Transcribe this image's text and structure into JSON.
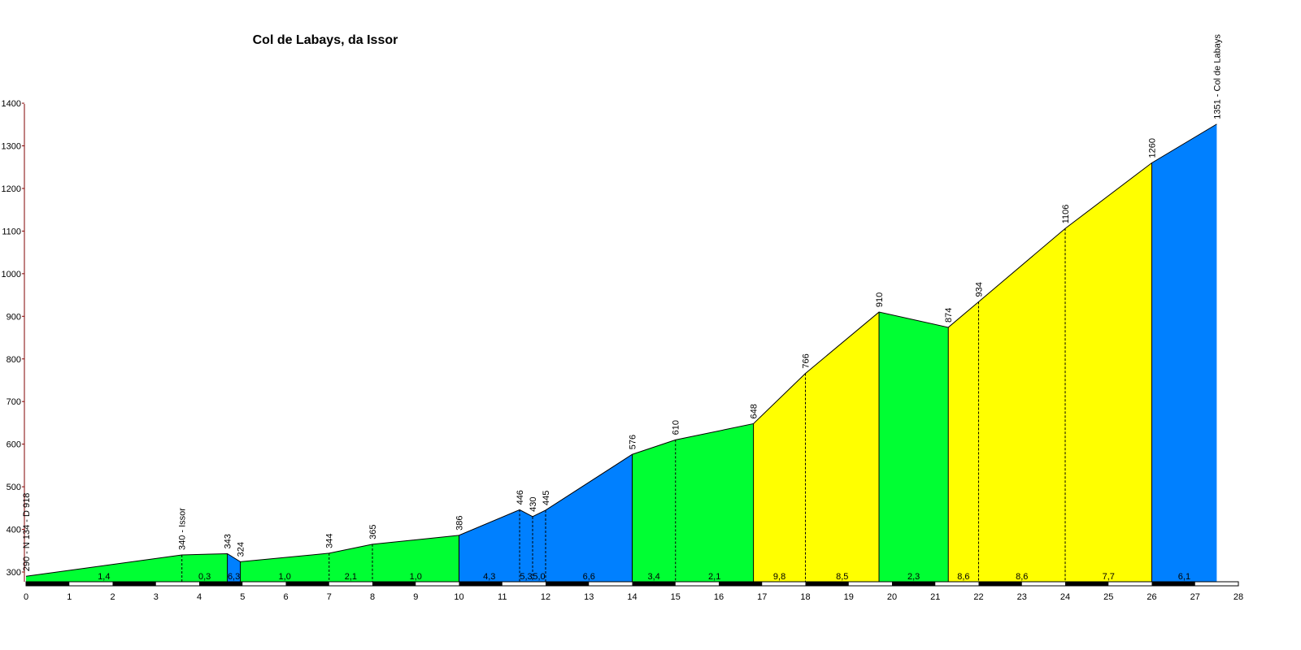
{
  "chart_data": {
    "type": "area",
    "title": "Col de Labays, da Issor",
    "xlabel": "",
    "ylabel": "",
    "xlim": [
      0,
      28
    ],
    "ylim": [
      270,
      1400
    ],
    "x_ticks": [
      "0",
      "1",
      "2",
      "3",
      "4",
      "5",
      "6",
      "7",
      "8",
      "9",
      "10",
      "11",
      "12",
      "13",
      "14",
      "15",
      "16",
      "17",
      "18",
      "19",
      "20",
      "21",
      "22",
      "23",
      "24",
      "25",
      "26",
      "27",
      "28"
    ],
    "y_ticks": [
      "300",
      "400",
      "500",
      "600",
      "700",
      "800",
      "900",
      "1000",
      "1100",
      "1200",
      "1300",
      "1400"
    ],
    "colors": {
      "green": "#00ff33",
      "blue": "#0080ff",
      "yellow": "#ffff00",
      "axis": "#800000"
    },
    "profile": [
      {
        "km": 0,
        "alt": 290,
        "label": "290 - N 134 - D 918"
      },
      {
        "km": 3.6,
        "alt": 340,
        "label": "340 - Issor"
      },
      {
        "km": 4.65,
        "alt": 343,
        "label": "343"
      },
      {
        "km": 4.95,
        "alt": 324,
        "label": "324"
      },
      {
        "km": 7.0,
        "alt": 344,
        "label": "344"
      },
      {
        "km": 8.0,
        "alt": 365,
        "label": "365"
      },
      {
        "km": 10.0,
        "alt": 386,
        "label": "386"
      },
      {
        "km": 11.4,
        "alt": 446,
        "label": "446"
      },
      {
        "km": 11.7,
        "alt": 430,
        "label": "430"
      },
      {
        "km": 12.0,
        "alt": 445,
        "label": "445"
      },
      {
        "km": 14.0,
        "alt": 576,
        "label": "576"
      },
      {
        "km": 15.0,
        "alt": 610,
        "label": "610"
      },
      {
        "km": 16.8,
        "alt": 648,
        "label": "648"
      },
      {
        "km": 18.0,
        "alt": 766,
        "label": "766"
      },
      {
        "km": 19.7,
        "alt": 910,
        "label": "910"
      },
      {
        "km": 21.3,
        "alt": 874,
        "label": "874"
      },
      {
        "km": 22.0,
        "alt": 934,
        "label": "934"
      },
      {
        "km": 24.0,
        "alt": 1106,
        "label": "1106"
      },
      {
        "km": 26.0,
        "alt": 1260,
        "label": "1260"
      },
      {
        "km": 27.5,
        "alt": 1351,
        "label": "1351 - Col de Labays"
      }
    ],
    "segments": [
      {
        "from": 0,
        "to": 3.6,
        "color": "green",
        "grade": "1,4"
      },
      {
        "from": 3.6,
        "to": 4.65,
        "color": "green",
        "grade": "0,3"
      },
      {
        "from": 4.65,
        "to": 4.95,
        "color": "blue",
        "grade": "6,3"
      },
      {
        "from": 4.95,
        "to": 7.0,
        "color": "green",
        "grade": "1,0"
      },
      {
        "from": 7.0,
        "to": 8.0,
        "color": "green",
        "grade": "2,1"
      },
      {
        "from": 8.0,
        "to": 10.0,
        "color": "green",
        "grade": "1,0"
      },
      {
        "from": 10.0,
        "to": 11.4,
        "color": "blue",
        "grade": "4,3"
      },
      {
        "from": 11.4,
        "to": 11.7,
        "color": "blue",
        "grade": "5,3"
      },
      {
        "from": 11.7,
        "to": 12.0,
        "color": "blue",
        "grade": "5,0"
      },
      {
        "from": 12.0,
        "to": 14.0,
        "color": "blue",
        "grade": "6,6"
      },
      {
        "from": 14.0,
        "to": 15.0,
        "color": "green",
        "grade": "3,4"
      },
      {
        "from": 15.0,
        "to": 16.8,
        "color": "green",
        "grade": "2,1"
      },
      {
        "from": 16.8,
        "to": 18.0,
        "color": "yellow",
        "grade": "9,8"
      },
      {
        "from": 18.0,
        "to": 19.7,
        "color": "yellow",
        "grade": "8,5"
      },
      {
        "from": 19.7,
        "to": 21.3,
        "color": "green",
        "grade": "2,3"
      },
      {
        "from": 21.3,
        "to": 22.0,
        "color": "yellow",
        "grade": "8,6"
      },
      {
        "from": 22.0,
        "to": 24.0,
        "color": "yellow",
        "grade": "8,6"
      },
      {
        "from": 24.0,
        "to": 26.0,
        "color": "yellow",
        "grade": "7,7"
      },
      {
        "from": 26.0,
        "to": 27.5,
        "color": "blue",
        "grade": "6,1"
      }
    ]
  }
}
